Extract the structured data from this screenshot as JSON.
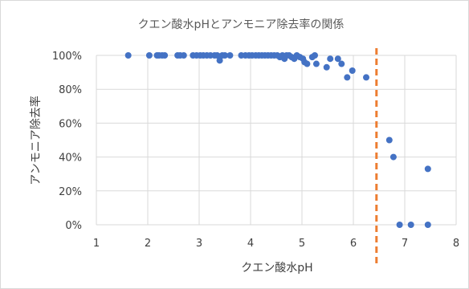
{
  "chart_data": {
    "type": "scatter",
    "title": "クエン酸水pHとアンモニア除去率の関係",
    "xlabel": "クエン酸水pH",
    "ylabel": "アンモニア除去率",
    "xlim": [
      1,
      8
    ],
    "ylim": [
      0,
      100
    ],
    "x_ticks": [
      1,
      2,
      3,
      4,
      5,
      6,
      7,
      8
    ],
    "y_ticks": [
      0,
      20,
      40,
      60,
      80,
      100
    ],
    "y_tick_labels": [
      "0%",
      "20%",
      "40%",
      "60%",
      "80%",
      "100%"
    ],
    "grid": true,
    "marker_color": "#4472c4",
    "reference_line": {
      "x": 6.45,
      "style": "dashed",
      "color": "#ed7d31"
    },
    "points": [
      {
        "x": 1.62,
        "y": 100
      },
      {
        "x": 2.03,
        "y": 100
      },
      {
        "x": 2.18,
        "y": 100
      },
      {
        "x": 2.22,
        "y": 100
      },
      {
        "x": 2.28,
        "y": 100
      },
      {
        "x": 2.33,
        "y": 100
      },
      {
        "x": 2.58,
        "y": 100
      },
      {
        "x": 2.63,
        "y": 100
      },
      {
        "x": 2.7,
        "y": 100
      },
      {
        "x": 2.88,
        "y": 100
      },
      {
        "x": 2.95,
        "y": 100
      },
      {
        "x": 3.02,
        "y": 100
      },
      {
        "x": 3.08,
        "y": 100
      },
      {
        "x": 3.15,
        "y": 100
      },
      {
        "x": 3.22,
        "y": 100
      },
      {
        "x": 3.3,
        "y": 100
      },
      {
        "x": 3.35,
        "y": 100
      },
      {
        "x": 3.4,
        "y": 97
      },
      {
        "x": 3.45,
        "y": 100
      },
      {
        "x": 3.5,
        "y": 100
      },
      {
        "x": 3.6,
        "y": 100
      },
      {
        "x": 3.82,
        "y": 100
      },
      {
        "x": 3.9,
        "y": 100
      },
      {
        "x": 3.97,
        "y": 100
      },
      {
        "x": 4.03,
        "y": 100
      },
      {
        "x": 4.1,
        "y": 100
      },
      {
        "x": 4.16,
        "y": 100
      },
      {
        "x": 4.22,
        "y": 100
      },
      {
        "x": 4.28,
        "y": 100
      },
      {
        "x": 4.34,
        "y": 100
      },
      {
        "x": 4.4,
        "y": 100
      },
      {
        "x": 4.46,
        "y": 100
      },
      {
        "x": 4.52,
        "y": 100
      },
      {
        "x": 4.57,
        "y": 99
      },
      {
        "x": 4.62,
        "y": 100
      },
      {
        "x": 4.66,
        "y": 98
      },
      {
        "x": 4.7,
        "y": 100
      },
      {
        "x": 4.75,
        "y": 100
      },
      {
        "x": 4.8,
        "y": 99
      },
      {
        "x": 4.85,
        "y": 98
      },
      {
        "x": 4.9,
        "y": 100
      },
      {
        "x": 4.96,
        "y": 99
      },
      {
        "x": 5.02,
        "y": 98
      },
      {
        "x": 5.05,
        "y": 96
      },
      {
        "x": 5.1,
        "y": 95
      },
      {
        "x": 5.2,
        "y": 99
      },
      {
        "x": 5.25,
        "y": 100
      },
      {
        "x": 5.28,
        "y": 95
      },
      {
        "x": 5.48,
        "y": 93
      },
      {
        "x": 5.55,
        "y": 98
      },
      {
        "x": 5.7,
        "y": 98
      },
      {
        "x": 5.77,
        "y": 95
      },
      {
        "x": 5.88,
        "y": 87
      },
      {
        "x": 5.98,
        "y": 91
      },
      {
        "x": 6.25,
        "y": 87
      },
      {
        "x": 6.7,
        "y": 50
      },
      {
        "x": 6.78,
        "y": 40
      },
      {
        "x": 6.9,
        "y": 0
      },
      {
        "x": 7.12,
        "y": 0
      },
      {
        "x": 7.45,
        "y": 33
      },
      {
        "x": 7.45,
        "y": 0
      }
    ]
  }
}
